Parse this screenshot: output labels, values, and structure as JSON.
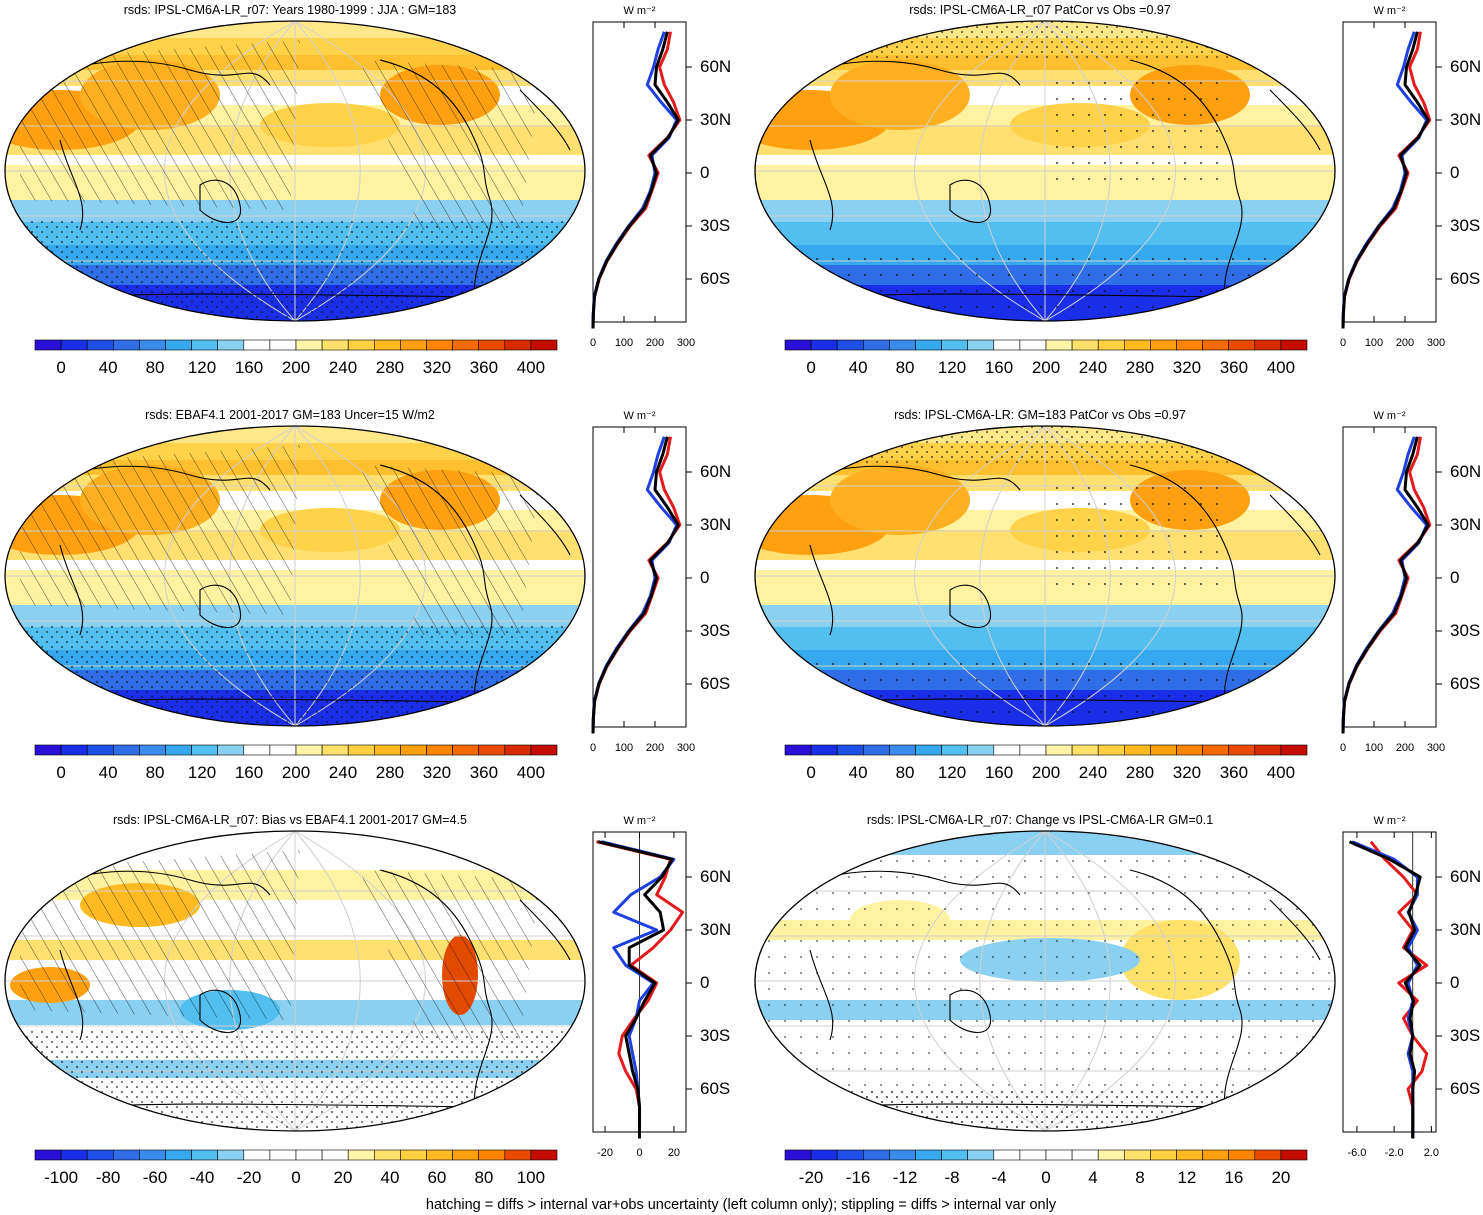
{
  "footer_note": "hatching = diffs > internal var+obs uncertainty (left column only); stippling = diffs > internal var only",
  "colors": {
    "model_line": "#e41a1c",
    "obs_line": "#1f3fe0",
    "ensemble_line": "#000000",
    "map_border": "#000000",
    "graticule": "#d0d0d0"
  },
  "units_label": "W m⁻²",
  "lat_ticks": [
    "60N",
    "30N",
    "0",
    "30S",
    "60S"
  ],
  "panels": [
    {
      "id": "model-climatology",
      "title": "rsds: IPSL-CM6A-LR_r07: Years 1980-1999 : JJA : GM=183",
      "colorbar_labels": [
        "0",
        "40",
        "80",
        "120",
        "160",
        "200",
        "240",
        "280",
        "320",
        "360",
        "400"
      ],
      "colorbar_palette": "absolute",
      "map_overlay": "hatch",
      "profile_xticks": [
        "0",
        "100",
        "200",
        "300"
      ],
      "profile_xlim": [
        0,
        300
      ],
      "profile_kind": "absolute"
    },
    {
      "id": "model-pattern",
      "title": "rsds: IPSL-CM6A-LR_r07 PatCor vs Obs =0.97",
      "colorbar_labels": [
        "0",
        "40",
        "80",
        "120",
        "160",
        "200",
        "240",
        "280",
        "320",
        "360",
        "400"
      ],
      "colorbar_palette": "absolute",
      "map_overlay": "stipple",
      "profile_xticks": [
        "0",
        "100",
        "200",
        "300"
      ],
      "profile_xlim": [
        0,
        300
      ],
      "profile_kind": "absolute"
    },
    {
      "id": "obs-climatology",
      "title": "rsds: EBAF4.1 2001-2017 GM=183 Uncer=15 W/m2",
      "colorbar_labels": [
        "0",
        "40",
        "80",
        "120",
        "160",
        "200",
        "240",
        "280",
        "320",
        "360",
        "400"
      ],
      "colorbar_palette": "absolute",
      "map_overlay": "hatch",
      "profile_xticks": [
        "0",
        "100",
        "200",
        "300"
      ],
      "profile_xlim": [
        0,
        300
      ],
      "profile_kind": "absolute"
    },
    {
      "id": "ensemble-pattern",
      "title": "rsds: IPSL-CM6A-LR: GM=183 PatCor vs Obs =0.97",
      "colorbar_labels": [
        "0",
        "40",
        "80",
        "120",
        "160",
        "200",
        "240",
        "280",
        "320",
        "360",
        "400"
      ],
      "colorbar_palette": "absolute",
      "map_overlay": "stipple",
      "profile_xticks": [
        "0",
        "100",
        "200",
        "300"
      ],
      "profile_xlim": [
        0,
        300
      ],
      "profile_kind": "absolute"
    },
    {
      "id": "bias",
      "title": "rsds: IPSL-CM6A-LR_r07: Bias vs EBAF4.1 2001-2017 GM=4.5",
      "colorbar_labels": [
        "-100",
        "-80",
        "-60",
        "-40",
        "-20",
        "0",
        "20",
        "40",
        "60",
        "80",
        "100"
      ],
      "colorbar_palette": "diverging",
      "map_overlay": "hatch",
      "profile_xticks": [
        "-20",
        "0",
        "20"
      ],
      "profile_xlim": [
        -27,
        27
      ],
      "profile_kind": "bias"
    },
    {
      "id": "change",
      "title": "rsds: IPSL-CM6A-LR_r07: Change vs IPSL-CM6A-LR GM=0.1",
      "colorbar_labels": [
        "-20",
        "-16",
        "-12",
        "-8",
        "-4",
        "0",
        "4",
        "8",
        "12",
        "16",
        "20"
      ],
      "colorbar_palette": "diverging",
      "map_overlay": "stipple-sparse",
      "profile_xticks": [
        "-6.0",
        "-2.0",
        "2.0"
      ],
      "profile_xlim": [
        -7.5,
        2.5
      ],
      "profile_kind": "change"
    }
  ],
  "chart_data": {
    "type": "line",
    "description_source": "zonal-mean rsds profiles (W m-2) vs latitude; maps are global JJA fields",
    "latitudes": [
      80,
      70,
      60,
      50,
      40,
      30,
      20,
      10,
      0,
      -10,
      -20,
      -30,
      -40,
      -50,
      -60,
      -70,
      -80,
      -88
    ],
    "profiles": {
      "absolute": {
        "series": [
          {
            "key": "model",
            "values": [
              250,
              240,
              215,
              230,
              260,
              280,
              240,
              180,
              210,
              190,
              170,
              120,
              80,
              45,
              20,
              5,
              1,
              0
            ]
          },
          {
            "key": "obs",
            "values": [
              230,
              210,
              195,
              175,
              220,
              270,
              245,
              190,
              200,
              185,
              160,
              115,
              75,
              42,
              18,
              4,
              1,
              0
            ]
          },
          {
            "key": "ensemble",
            "values": [
              240,
              225,
              205,
              200,
              240,
              275,
              242,
              185,
              205,
              188,
              165,
              117,
              78,
              44,
              19,
              5,
              1,
              0
            ]
          }
        ]
      },
      "bias": {
        "series": [
          {
            "key": "model",
            "values": [
              -25,
              18,
              15,
              10,
              25,
              18,
              8,
              -5,
              10,
              5,
              -3,
              -10,
              -12,
              -8,
              -2,
              0,
              0,
              0
            ]
          },
          {
            "key": "obs",
            "values": [
              -22,
              20,
              12,
              -5,
              -15,
              10,
              -15,
              -8,
              8,
              0,
              -2,
              -6,
              -4,
              -2,
              -1,
              0,
              0,
              0
            ]
          },
          {
            "key": "ensemble",
            "values": [
              -24,
              19,
              13,
              3,
              12,
              14,
              -6,
              -6,
              9,
              3,
              -2,
              -8,
              -6,
              -4,
              -1,
              0,
              0,
              0
            ]
          }
        ]
      },
      "change": {
        "series": [
          {
            "key": "model",
            "values": [
              -4.5,
              -3,
              -1,
              0.5,
              -1.5,
              0,
              -1,
              1.5,
              -1.5,
              0.5,
              -1,
              0,
              1.5,
              1,
              -0.5,
              0,
              0,
              0
            ]
          },
          {
            "key": "obs",
            "values": [
              -6.5,
              -2,
              0.5,
              0.5,
              -0.5,
              0.5,
              -0.5,
              0.5,
              -0.5,
              0,
              -0.5,
              0,
              -0.5,
              0,
              0,
              0,
              0,
              0
            ]
          },
          {
            "key": "ensemble",
            "values": [
              -6.8,
              -2.5,
              0.8,
              0.3,
              -0.4,
              0.2,
              -0.8,
              0.8,
              -0.8,
              0.1,
              -0.3,
              0,
              -0.3,
              0.2,
              0,
              0,
              0,
              0
            ]
          }
        ]
      }
    }
  }
}
